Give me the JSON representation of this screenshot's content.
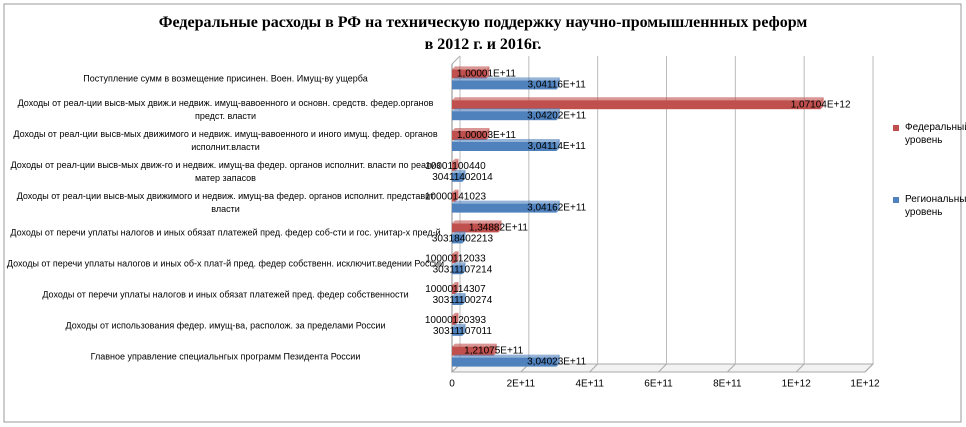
{
  "chart_data": {
    "type": "barh",
    "title": [
      "Федеральные расходы в РФ на техническую поддержку научно-промышленнных реформ",
      "в 2012 г. и 2016г."
    ],
    "categories": [
      "Поступление сумм в возмещение присинен. Воен. Имущ-ву ущерба",
      "Доходы от реал-ции высв-мых движ.и недвиж. имущ-вавоенного и основн. средств. федер.органов предст. власти",
      "Доходы от реал-ции высв-мых движимого и недвиж. имущ-вавоенного и иного имущ. федер. органов исполнит.власти",
      "Доходы от реал-ции высв-мых движ-го и недвиж. имущ-ва федер. органов исполнит. власти по реализ матер запасов",
      "Доходы от реал-ции высв-мых движимого и недвиж. имущ-ва федер. органов исполнит. представит власти",
      "Доходы от перечи уплаты налогов и иных обязат платежей пред. федер соб-сти и гос. унитар-х пред-й",
      "Доходы от перечи уплаты налогов и иных об-х плат-й пред. федер собственн. исключит.ведении России",
      "Доходы от перечи уплаты налогов и иных обязат платежей пред. федер собственности",
      "Доходы от использования федер. имущ-ва, располож. за пределами России",
      "Главное управление специальнгых программ Пезидента России"
    ],
    "series": [
      {
        "name": "Федеральный уровень",
        "color": "#c0504d",
        "values": [
          100001000000,
          1071040000000,
          100003000000,
          10001100440,
          10000141023,
          134882000000,
          10000112033,
          10000114307,
          10000120393,
          121075000000
        ],
        "value_labels": [
          "1,00001E+11",
          "1,07104E+12",
          "1,00003E+11",
          "10001100440",
          "10000141023",
          "1,34882E+11",
          "10000112033",
          "10000114307",
          "10000120393",
          "1,21075E+11"
        ]
      },
      {
        "name": "Региональный уровень",
        "color": "#4f81bd",
        "values": [
          304116000000,
          304202000000,
          304114000000,
          30411402014,
          304162000000,
          30318402213,
          30311107214,
          30311100274,
          30311107011,
          304023000000
        ],
        "value_labels": [
          "3,04116E+11",
          "3,04202E+11",
          "3,04114E+11",
          "30411402014",
          "3,04162E+11",
          "30318402213",
          "30311107214",
          "30311100274",
          "30311107011",
          "3,04023E+11"
        ]
      }
    ],
    "xlim": [
      0,
      1200000000000
    ],
    "xticks": [
      0,
      {
        "value": 200000000000,
        "label": "2E+11"
      },
      {
        "value": 400000000000,
        "label": "4E+11"
      },
      {
        "value": 600000000000,
        "label": "6E+11"
      },
      {
        "value": 800000000000,
        "label": "8E+11"
      },
      {
        "value": 1000000000000,
        "label": "1E+12"
      },
      {
        "value": 1200000000000,
        "label": "1E+12"
      }
    ],
    "grid": true,
    "legend": "right"
  }
}
